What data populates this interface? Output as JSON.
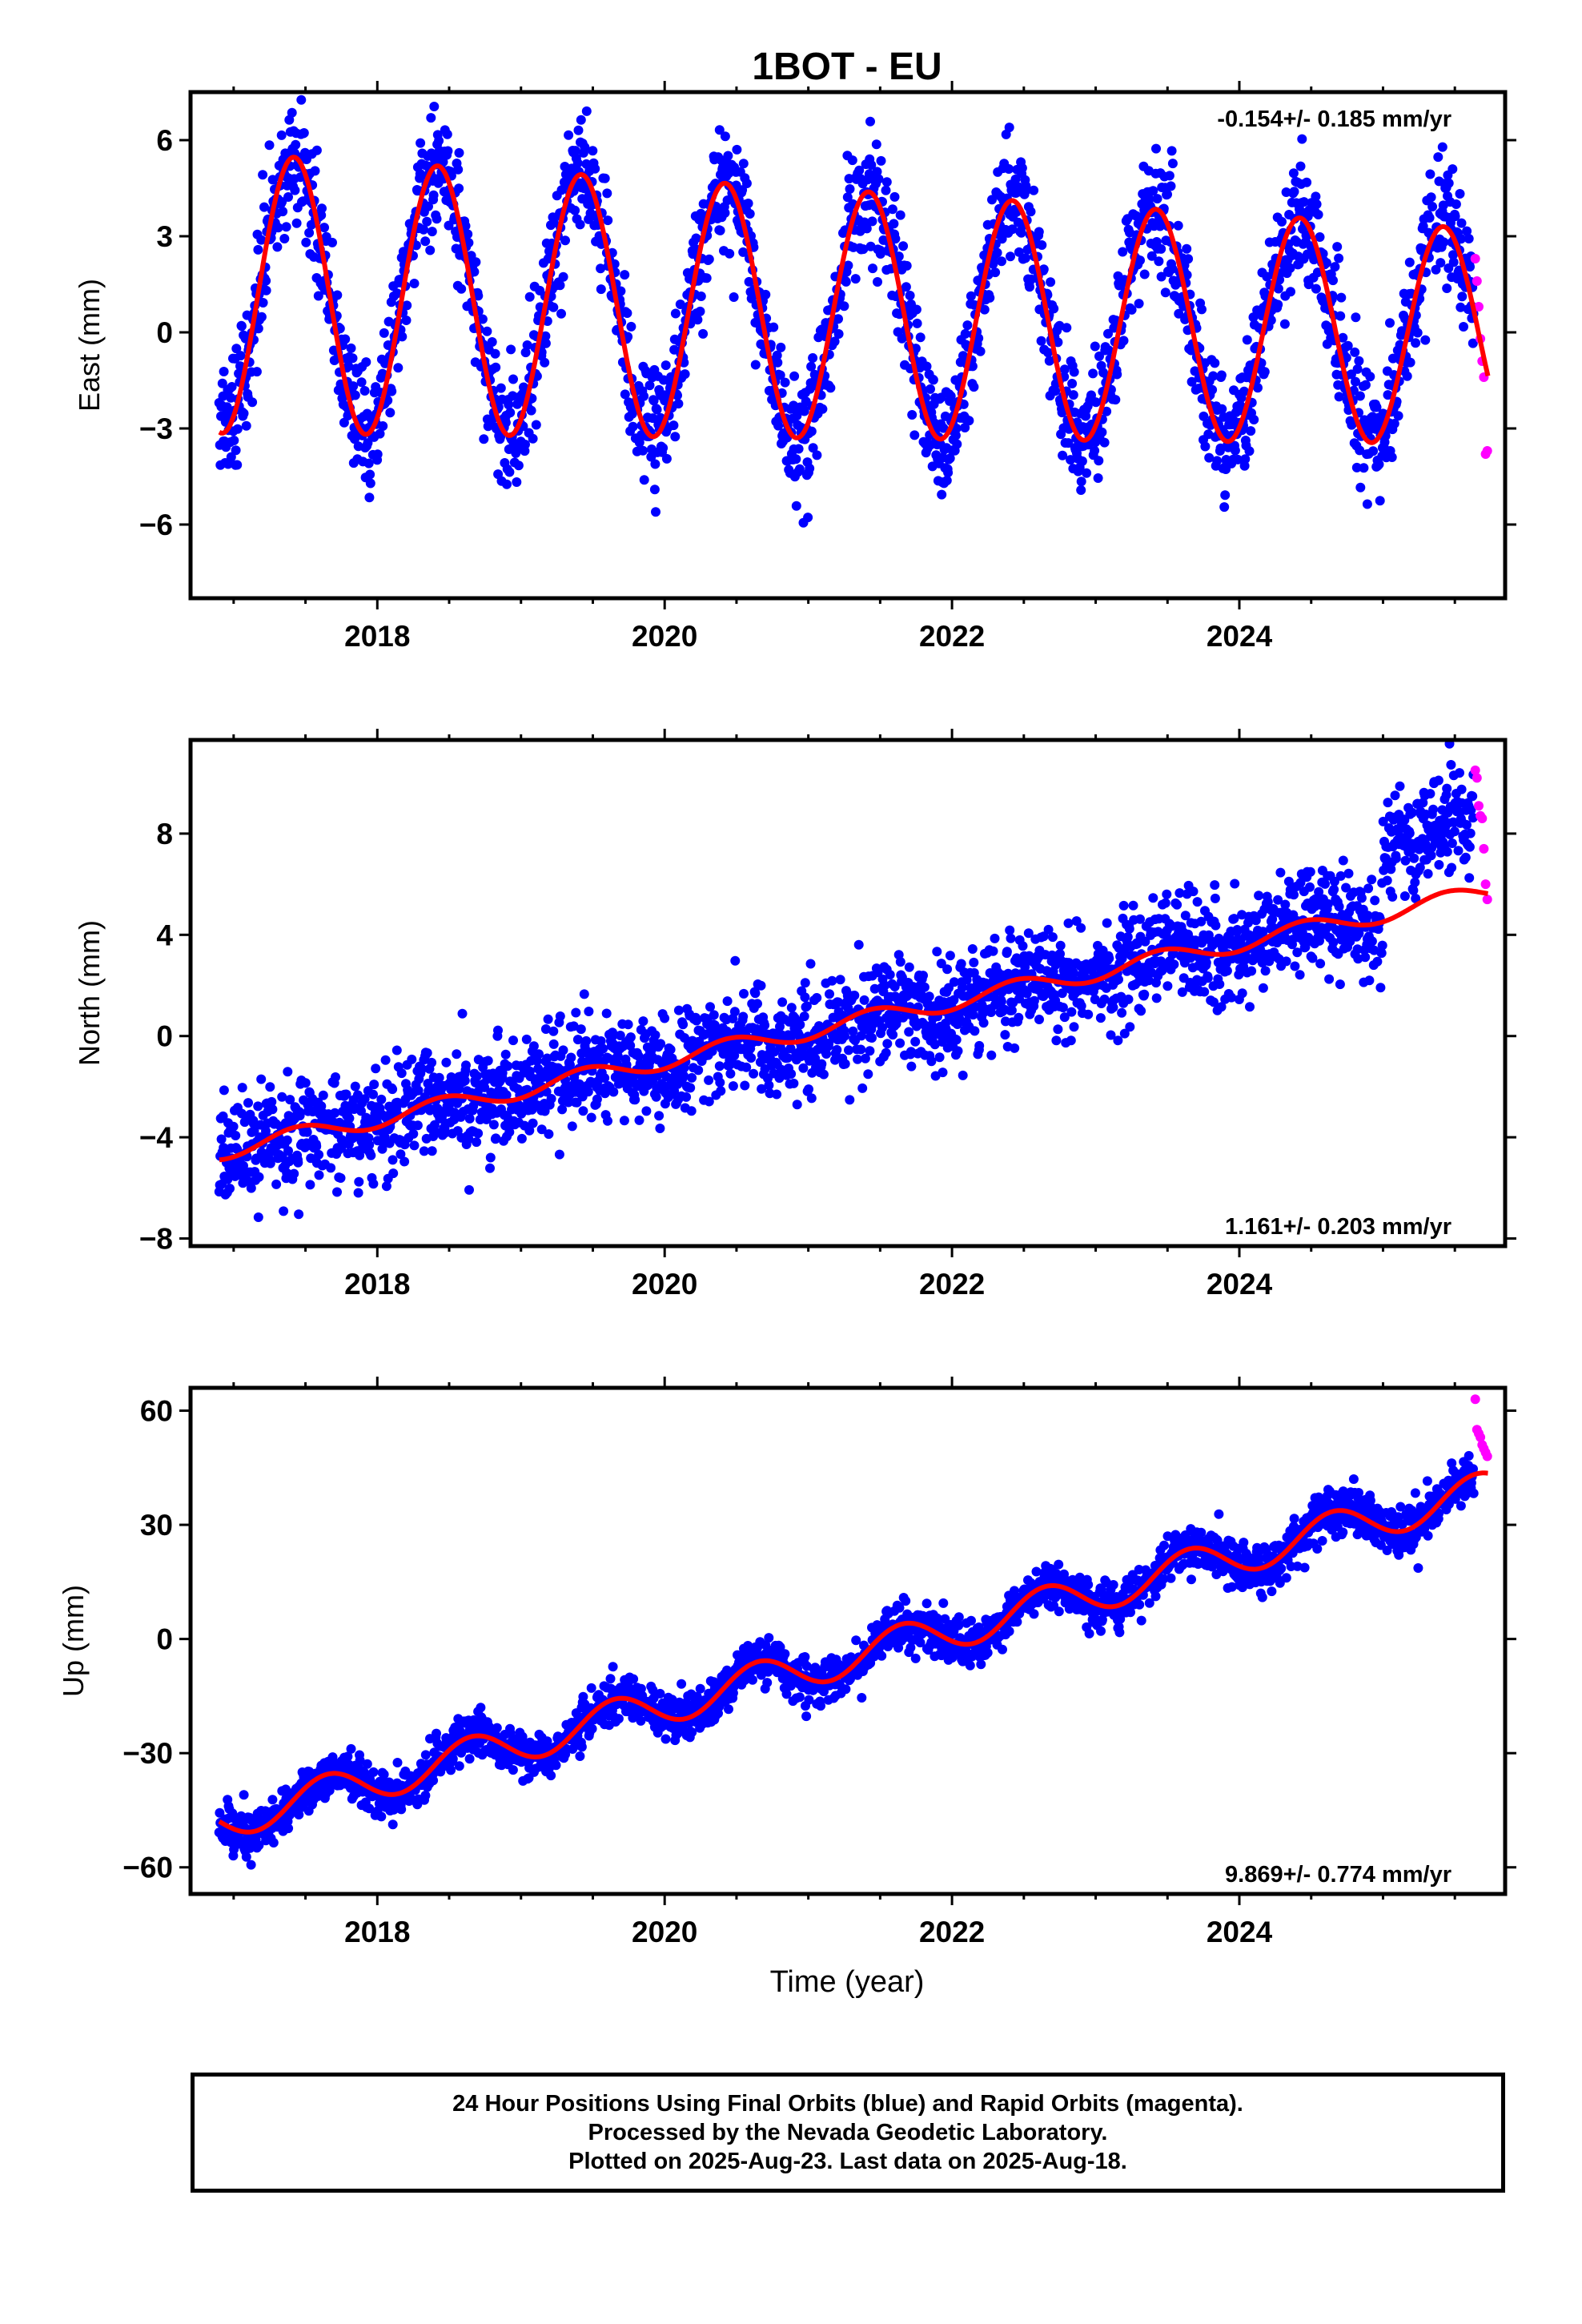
{
  "title": "1BOT - EU",
  "xlabel": "Time (year)",
  "caption": {
    "line1": "24 Hour Positions Using Final Orbits (blue) and Rapid Orbits (magenta).",
    "line2": "Processed by the Nevada Geodetic Laboratory.",
    "line3": "Plotted on 2025-Aug-23. Last data on 2025-Aug-18."
  },
  "colors": {
    "final": "#0000ff",
    "rapid": "#ff00ff",
    "fit": "#ff0000",
    "frame": "#000000"
  },
  "chart_data": [
    {
      "type": "scatter",
      "component": "east",
      "ylabel": "East (mm)",
      "rate_label": "-0.154+/- 0.185 mm/yr",
      "rate_position": "top-right",
      "xlim": [
        2016.7,
        2025.85
      ],
      "ylim": [
        -8.3,
        7.5
      ],
      "xticks": [
        2018,
        2020,
        2022,
        2024
      ],
      "xtick_labels": [
        "2018",
        "2020",
        "2022",
        "2024"
      ],
      "yticks": [
        -6,
        -3,
        0,
        3,
        6
      ],
      "ytick_labels": [
        "−6",
        "−3",
        "0",
        "3",
        "6"
      ],
      "data_start": 2016.9,
      "data_end": 2025.63,
      "model": {
        "offset": 0.6,
        "rate": -0.154,
        "ref_year": 2021.0,
        "annual_amp": 3.9,
        "annual_peak": 0.42,
        "annual_amp_trend": -0.03,
        "steps": []
      },
      "scatter_sd": 0.95,
      "rapid_values": [
        2.3,
        1.6,
        0.8,
        -0.2,
        -0.9,
        -1.4,
        -3.8,
        -3.7
      ],
      "series": [
        {
          "name": "Final Orbits",
          "color": "#0000ff"
        },
        {
          "name": "Rapid Orbits",
          "color": "#ff00ff"
        }
      ]
    },
    {
      "type": "scatter",
      "component": "north",
      "ylabel": "North (mm)",
      "rate_label": "1.161+/- 0.203 mm/yr",
      "rate_position": "bottom-right",
      "xlim": [
        2016.7,
        2025.85
      ],
      "ylim": [
        -8.3,
        11.7
      ],
      "xticks": [
        2018,
        2020,
        2022,
        2024
      ],
      "xtick_labels": [
        "2018",
        "2020",
        "2022",
        "2024"
      ],
      "yticks": [
        -8,
        -4,
        0,
        4,
        8
      ],
      "ytick_labels": [
        "−8",
        "−4",
        "0",
        "4",
        "8"
      ],
      "data_start": 2016.9,
      "data_end": 2025.63,
      "model": {
        "offset": 0.2,
        "rate": 1.161,
        "ref_year": 2021.0,
        "annual_amp": 0.35,
        "annual_peak": 0.45,
        "annual_amp_trend": 0,
        "steps": []
      },
      "scatter_sd": 1.0,
      "post_shift": {
        "from": 2025.0,
        "amount": 2.8
      },
      "rapid_values": [
        10.5,
        10.2,
        9.1,
        8.7,
        8.6,
        7.4,
        6.0,
        5.4
      ],
      "series": [
        {
          "name": "Final Orbits",
          "color": "#0000ff"
        },
        {
          "name": "Rapid Orbits",
          "color": "#ff00ff"
        }
      ]
    },
    {
      "type": "scatter",
      "component": "up",
      "ylabel": "Up (mm)",
      "rate_label": "9.869+/- 0.774 mm/yr",
      "rate_position": "bottom-right",
      "xlim": [
        2016.7,
        2025.85
      ],
      "ylim": [
        -67,
        66
      ],
      "xticks": [
        2018,
        2020,
        2022,
        2024
      ],
      "xtick_labels": [
        "2018",
        "2020",
        "2022",
        "2024"
      ],
      "yticks": [
        -60,
        -30,
        0,
        30,
        60
      ],
      "ytick_labels": [
        "−60",
        "−30",
        "0",
        "30",
        "60"
      ],
      "data_start": 2016.9,
      "data_end": 2025.63,
      "model": {
        "offset": -7.5,
        "rate": 9.869,
        "ref_year": 2021.0,
        "annual_amp": 5.0,
        "annual_peak": 0.65,
        "annual_amp_trend": 0,
        "steps": []
      },
      "scatter_sd": 3.0,
      "rapid_values": [
        63,
        55,
        54,
        53,
        51,
        50,
        49,
        48
      ],
      "series": [
        {
          "name": "Final Orbits",
          "color": "#0000ff"
        },
        {
          "name": "Rapid Orbits",
          "color": "#ff00ff"
        }
      ]
    }
  ]
}
